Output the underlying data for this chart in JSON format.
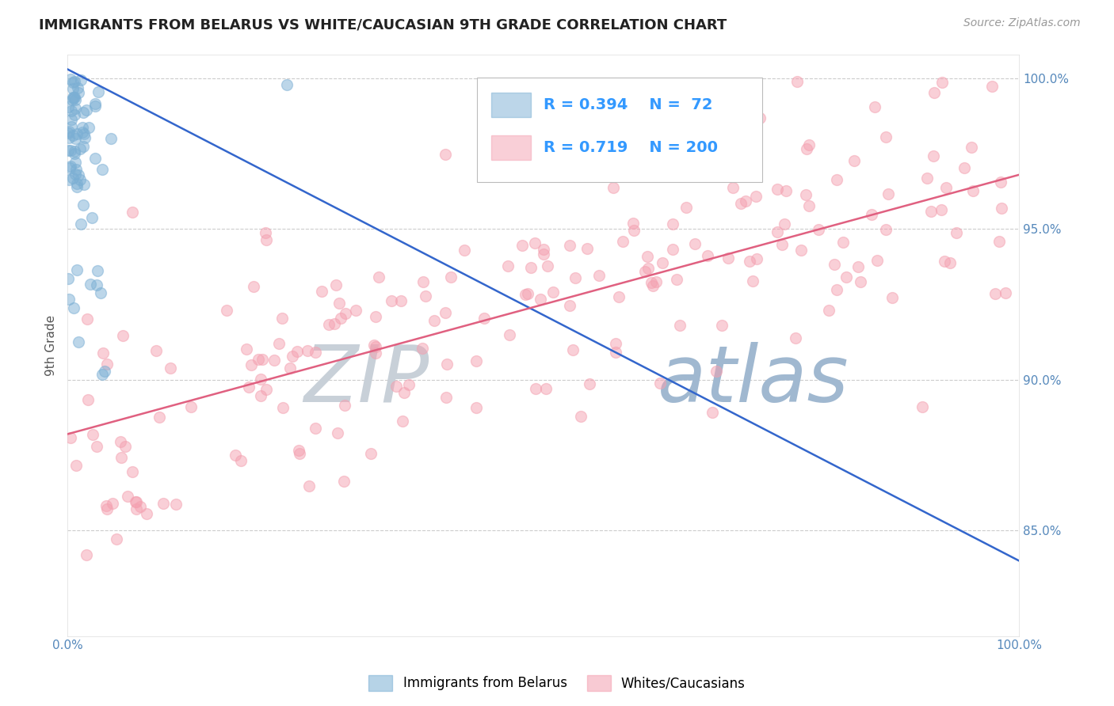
{
  "title": "IMMIGRANTS FROM BELARUS VS WHITE/CAUCASIAN 9TH GRADE CORRELATION CHART",
  "source": "Source: ZipAtlas.com",
  "ylabel": "9th Grade",
  "blue_R": 0.394,
  "blue_N": 72,
  "pink_R": 0.719,
  "pink_N": 200,
  "blue_color": "#7BAFD4",
  "pink_color": "#F4A0B0",
  "blue_line_color": "#3366CC",
  "pink_line_color": "#E06080",
  "watermark_zip_color": "#D0D8E0",
  "watermark_atlas_color": "#A8C0D8",
  "title_color": "#222222",
  "source_color": "#999999",
  "axis_label_color": "#555555",
  "tick_label_color": "#5588BB",
  "legend_color": "#3399FF",
  "grid_color": "#CCCCCC",
  "xmin": 0.0,
  "xmax": 1.0,
  "ymin": 0.815,
  "ymax": 1.008,
  "ytick_vals": [
    0.85,
    0.9,
    0.95,
    1.0
  ],
  "ytick_labels": [
    "85.0%",
    "90.0%",
    "95.0%",
    "100.0%"
  ]
}
